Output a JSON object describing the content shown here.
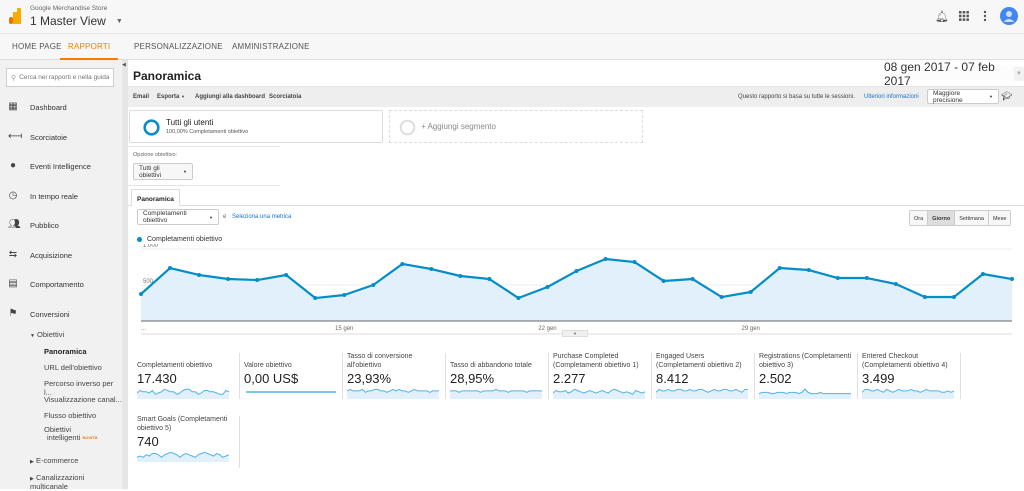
{
  "header": {
    "account": "Google Merchandise Store",
    "view": "1 Master View"
  },
  "nav": {
    "tabs": [
      {
        "label": "HOME PAGE"
      },
      {
        "label": "RAPPORTI"
      },
      {
        "label": "PERSONALIZZAZIONE"
      },
      {
        "label": "AMMINISTRAZIONE"
      }
    ]
  },
  "sidebar": {
    "search_placeholder": "Cerca nei rapporti e nella guida",
    "items": [
      {
        "label": "Dashboard"
      },
      {
        "label": "Scorciatoie"
      },
      {
        "label": "Eventi Intelligence"
      },
      {
        "label": "In tempo reale"
      },
      {
        "label": "Pubblico"
      },
      {
        "label": "Acquisizione"
      },
      {
        "label": "Comportamento"
      },
      {
        "label": "Conversioni"
      }
    ],
    "goals": "Obiettivi",
    "sub": [
      {
        "label": "Panoramica"
      },
      {
        "label": "URL dell'obiettivo"
      },
      {
        "label": "Percorso inverso per l..."
      },
      {
        "label": "Visualizzazione canal..."
      },
      {
        "label": "Flusso obiettivo"
      }
    ],
    "smart_goals": "Obiettivi",
    "smart_goals2": "intelligenti",
    "new_badge": "NOVITÀ",
    "ecommerce": "E-commerce",
    "multichannel": "Canalizzazioni multicanale"
  },
  "page": {
    "title": "Panoramica",
    "date_range": "08 gen 2017 - 07 feb 2017"
  },
  "toolbar": {
    "email": "Email",
    "export": "Esporta",
    "add_dashboard": "Aggiungi alla dashboard",
    "shortcut": "Scorciatoia",
    "sessions_note": "Questo rapporto si basa su tutte le sessioni.",
    "more_info": "Ulteriori informazioni",
    "precision": "Maggiore precisione"
  },
  "segment": {
    "name": "Tutti gli utenti",
    "detail": "100,00% Completamenti obiettivo",
    "add": "+ Aggiungi segmento"
  },
  "goal_option": {
    "label": "Opzione obiettivo:",
    "value": "Tutti gli obiettivi"
  },
  "tab": "Panoramica",
  "metric_select": "Completamenti obiettivo",
  "vs": "e",
  "select_metric": "Seleziona una metrica",
  "granularity": [
    "Ora",
    "Giorno",
    "Settimana",
    "Mese"
  ],
  "chart_data": {
    "type": "area",
    "legend": "Completamenti obiettivo",
    "ylim": [
      0,
      1000
    ],
    "yticks": [
      "1.000",
      "500"
    ],
    "xticks": [
      {
        "i": 0,
        "label": "..."
      },
      {
        "i": 7,
        "label": "15 gen"
      },
      {
        "i": 14,
        "label": "22 gen"
      },
      {
        "i": 21,
        "label": "29 gen"
      }
    ],
    "values": [
      375,
      736,
      639,
      583,
      569,
      639,
      319,
      361,
      500,
      792,
      722,
      625,
      583,
      319,
      472,
      694,
      861,
      819,
      556,
      583,
      333,
      403,
      736,
      708,
      597,
      597,
      514,
      333,
      333,
      653,
      583
    ],
    "color": "#058dc7"
  },
  "metrics": [
    {
      "label": "Completamenti obiettivo",
      "value": "17.430",
      "spark": [
        4,
        6,
        5,
        5,
        4,
        6,
        3,
        4,
        5,
        7,
        6,
        5,
        5,
        3,
        4,
        6,
        7,
        7,
        5,
        5,
        3,
        4,
        6,
        6,
        5,
        5,
        4,
        3,
        3,
        6,
        5
      ]
    },
    {
      "label": "Valore obiettivo",
      "value": "0,00 US$",
      "spark": [
        0,
        0
      ]
    },
    {
      "label": "Tasso di conversione all'obiettivo",
      "value": "23,93%",
      "spark": [
        5,
        6,
        5,
        5,
        5,
        6,
        4,
        5,
        5,
        6,
        6,
        5,
        5,
        4,
        5,
        6,
        5,
        6,
        5,
        5,
        4,
        5,
        6,
        5,
        5,
        5,
        5,
        4,
        5,
        5,
        5
      ]
    },
    {
      "label": "Tasso di abbandono totale",
      "value": "28,95%",
      "spark": [
        5,
        5,
        5,
        4,
        5,
        5,
        5,
        5,
        5,
        5,
        4,
        5,
        5,
        5,
        5,
        6,
        5,
        5,
        5,
        4,
        5,
        5,
        5,
        5,
        5,
        4,
        5,
        5,
        5,
        5,
        5
      ]
    },
    {
      "label": "Purchase Completed (Completamenti obiettivo 1)",
      "value": "2.277",
      "spark": [
        4,
        6,
        5,
        5,
        6,
        4,
        5,
        7,
        6,
        5,
        4,
        5,
        6,
        5,
        4,
        5,
        6,
        5,
        4,
        6,
        7,
        6,
        5,
        4,
        5,
        4,
        3,
        6,
        5,
        4,
        5
      ]
    },
    {
      "label": "Engaged Users (Completamenti obiettivo 2)",
      "value": "8.412",
      "spark": [
        4,
        6,
        5,
        5,
        6,
        5,
        5,
        6,
        6,
        5,
        5,
        6,
        5,
        5,
        6,
        6,
        5,
        4,
        5,
        6,
        5,
        5,
        6,
        6,
        5,
        5,
        6,
        5,
        4,
        6,
        6
      ]
    },
    {
      "label": "Registrations (Completamenti obiettivo 3)",
      "value": "2.502",
      "spark": [
        4,
        5,
        5,
        5,
        4,
        4,
        5,
        5,
        5,
        4,
        5,
        5,
        5,
        4,
        5,
        8,
        5,
        4,
        4,
        4,
        5,
        4,
        4,
        4,
        4,
        4,
        4,
        4,
        4,
        4,
        4
      ]
    },
    {
      "label": "Entered Checkout (Completamenti obiettivo 4)",
      "value": "3.499",
      "spark": [
        4,
        6,
        6,
        5,
        5,
        6,
        5,
        4,
        6,
        5,
        4,
        5,
        6,
        5,
        5,
        5,
        6,
        5,
        5,
        4,
        5,
        6,
        5,
        5,
        5,
        5,
        4,
        4,
        5,
        4,
        5
      ]
    },
    {
      "label": "Smart Goals (Completamenti obiettivo 5)",
      "value": "740",
      "spark": [
        3,
        4,
        3,
        5,
        4,
        6,
        6,
        5,
        3,
        5,
        6,
        7,
        6,
        5,
        3,
        5,
        6,
        5,
        4,
        3,
        5,
        6,
        7,
        6,
        5,
        4,
        6,
        5,
        3,
        4,
        5
      ]
    }
  ]
}
